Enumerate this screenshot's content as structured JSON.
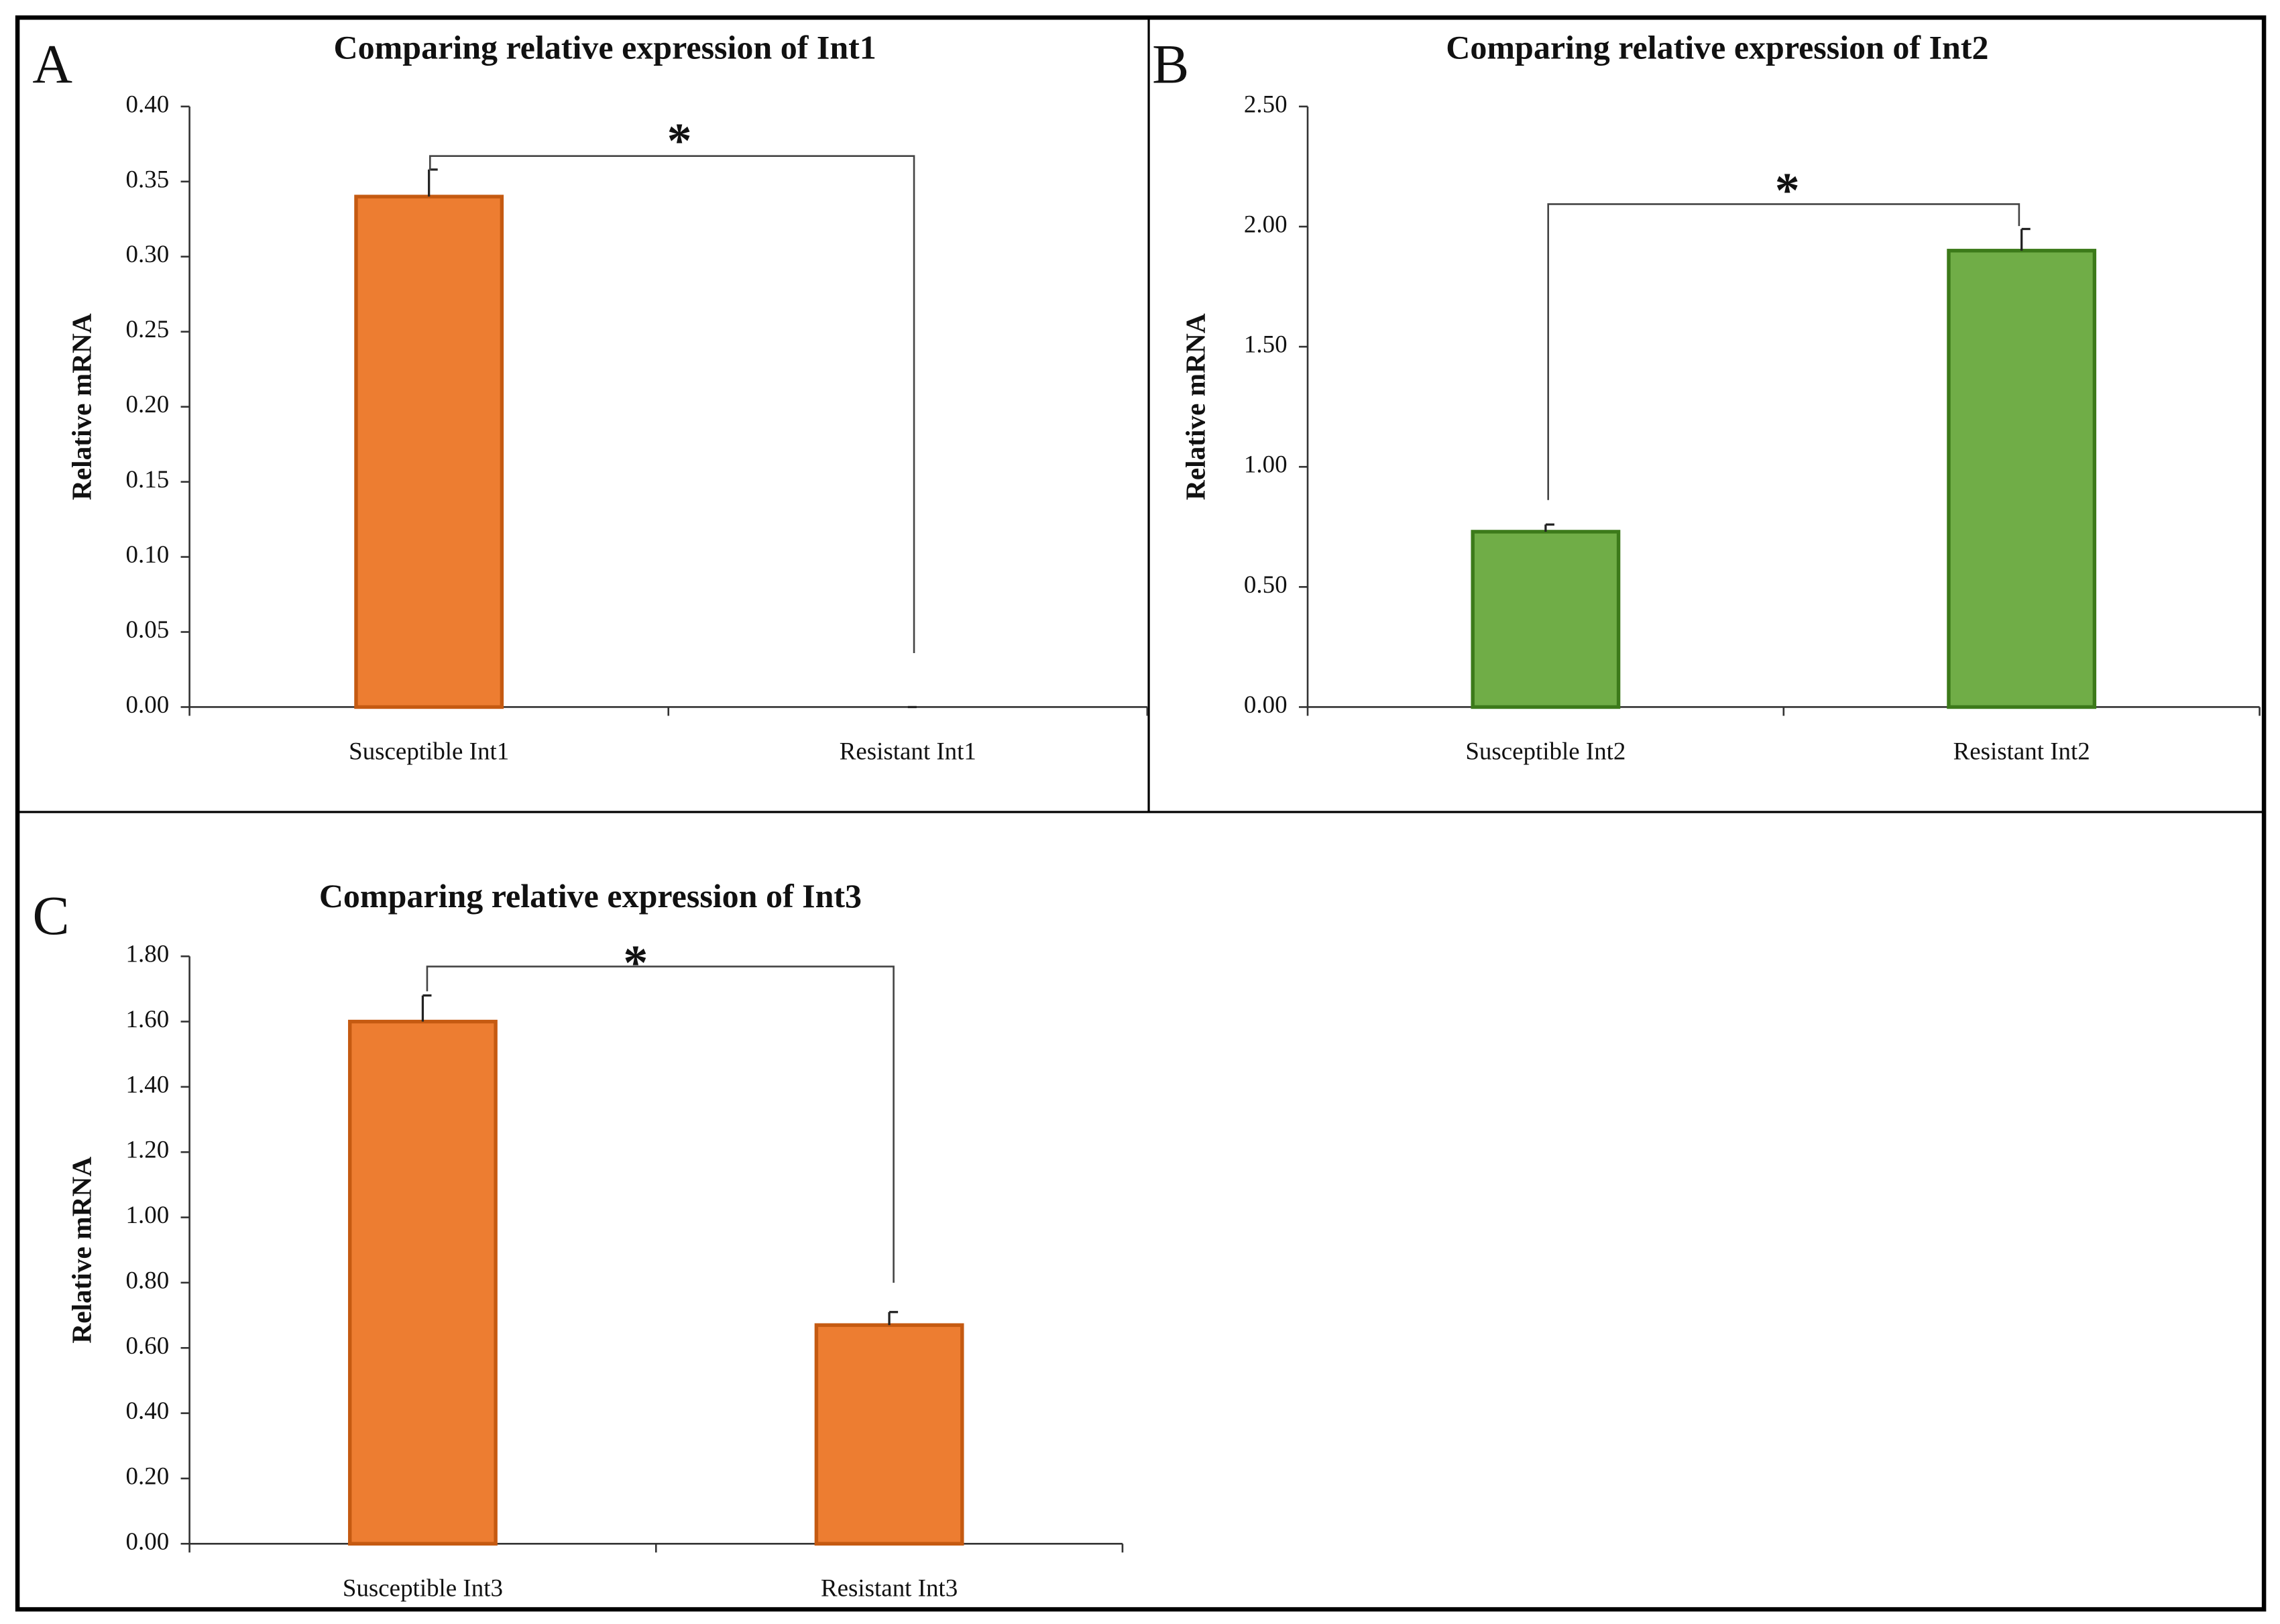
{
  "chart_data": [
    {
      "type": "bar",
      "panel": "A",
      "title": "Comparing relative expression of Int1",
      "ylabel": "Relative mRNA",
      "categories": [
        "Susceptible Int1",
        "Resistant Int1"
      ],
      "values": [
        0.34,
        0
      ],
      "errors": [
        0.018,
        0
      ],
      "color": "#ed7d31",
      "edge_color": "#c55a11",
      "annotation": "*",
      "ylim": [
        0,
        0.4
      ],
      "yticks": [
        {
          "value": 0,
          "label": "0.00"
        },
        {
          "value": 0.05,
          "label": "0.05"
        },
        {
          "value": 0.1,
          "label": "0.10"
        },
        {
          "value": 0.15,
          "label": "0.15"
        },
        {
          "value": 0.2,
          "label": "0.20"
        },
        {
          "value": 0.25,
          "label": "0.25"
        },
        {
          "value": 0.3,
          "label": "0.30"
        },
        {
          "value": 0.35,
          "label": "0.35"
        },
        {
          "value": 0.4,
          "label": "0.40"
        }
      ]
    },
    {
      "type": "bar",
      "panel": "B",
      "title": "Comparing relative expression of Int2",
      "ylabel": "Relative mRNA",
      "categories": [
        "Susceptible Int2",
        "Resistant Int2"
      ],
      "values": [
        0.73,
        1.9
      ],
      "errors": [
        0.03,
        0.09
      ],
      "color": "#70ad47",
      "edge_color": "#3c7a1a",
      "annotation": "*",
      "ylim": [
        0,
        2.5
      ],
      "yticks": [
        {
          "value": 0,
          "label": "0.00"
        },
        {
          "value": 0.5,
          "label": "0.50"
        },
        {
          "value": 1,
          "label": "1.00"
        },
        {
          "value": 1.5,
          "label": "1.50"
        },
        {
          "value": 2,
          "label": "2.00"
        },
        {
          "value": 2.5,
          "label": "2.50"
        }
      ]
    },
    {
      "type": "bar",
      "panel": "C",
      "title": "Comparing relative expression of Int3",
      "ylabel": "Relative mRNA",
      "categories": [
        "Susceptible Int3",
        "Resistant Int3"
      ],
      "values": [
        1.6,
        0.67
      ],
      "errors": [
        0.08,
        0.04
      ],
      "color": "#ed7d31",
      "edge_color": "#c55a11",
      "annotation": "*",
      "ylim": [
        0,
        1.8
      ],
      "yticks": [
        {
          "value": 0,
          "label": "0.00"
        },
        {
          "value": 0.2,
          "label": "0.20"
        },
        {
          "value": 0.4,
          "label": "0.40"
        },
        {
          "value": 0.6,
          "label": "0.60"
        },
        {
          "value": 0.8,
          "label": "0.80"
        },
        {
          "value": 1,
          "label": "1.00"
        },
        {
          "value": 1.2,
          "label": "1.20"
        },
        {
          "value": 1.4,
          "label": "1.40"
        },
        {
          "value": 1.6,
          "label": "1.60"
        },
        {
          "value": 1.8,
          "label": "1.80"
        }
      ]
    }
  ]
}
